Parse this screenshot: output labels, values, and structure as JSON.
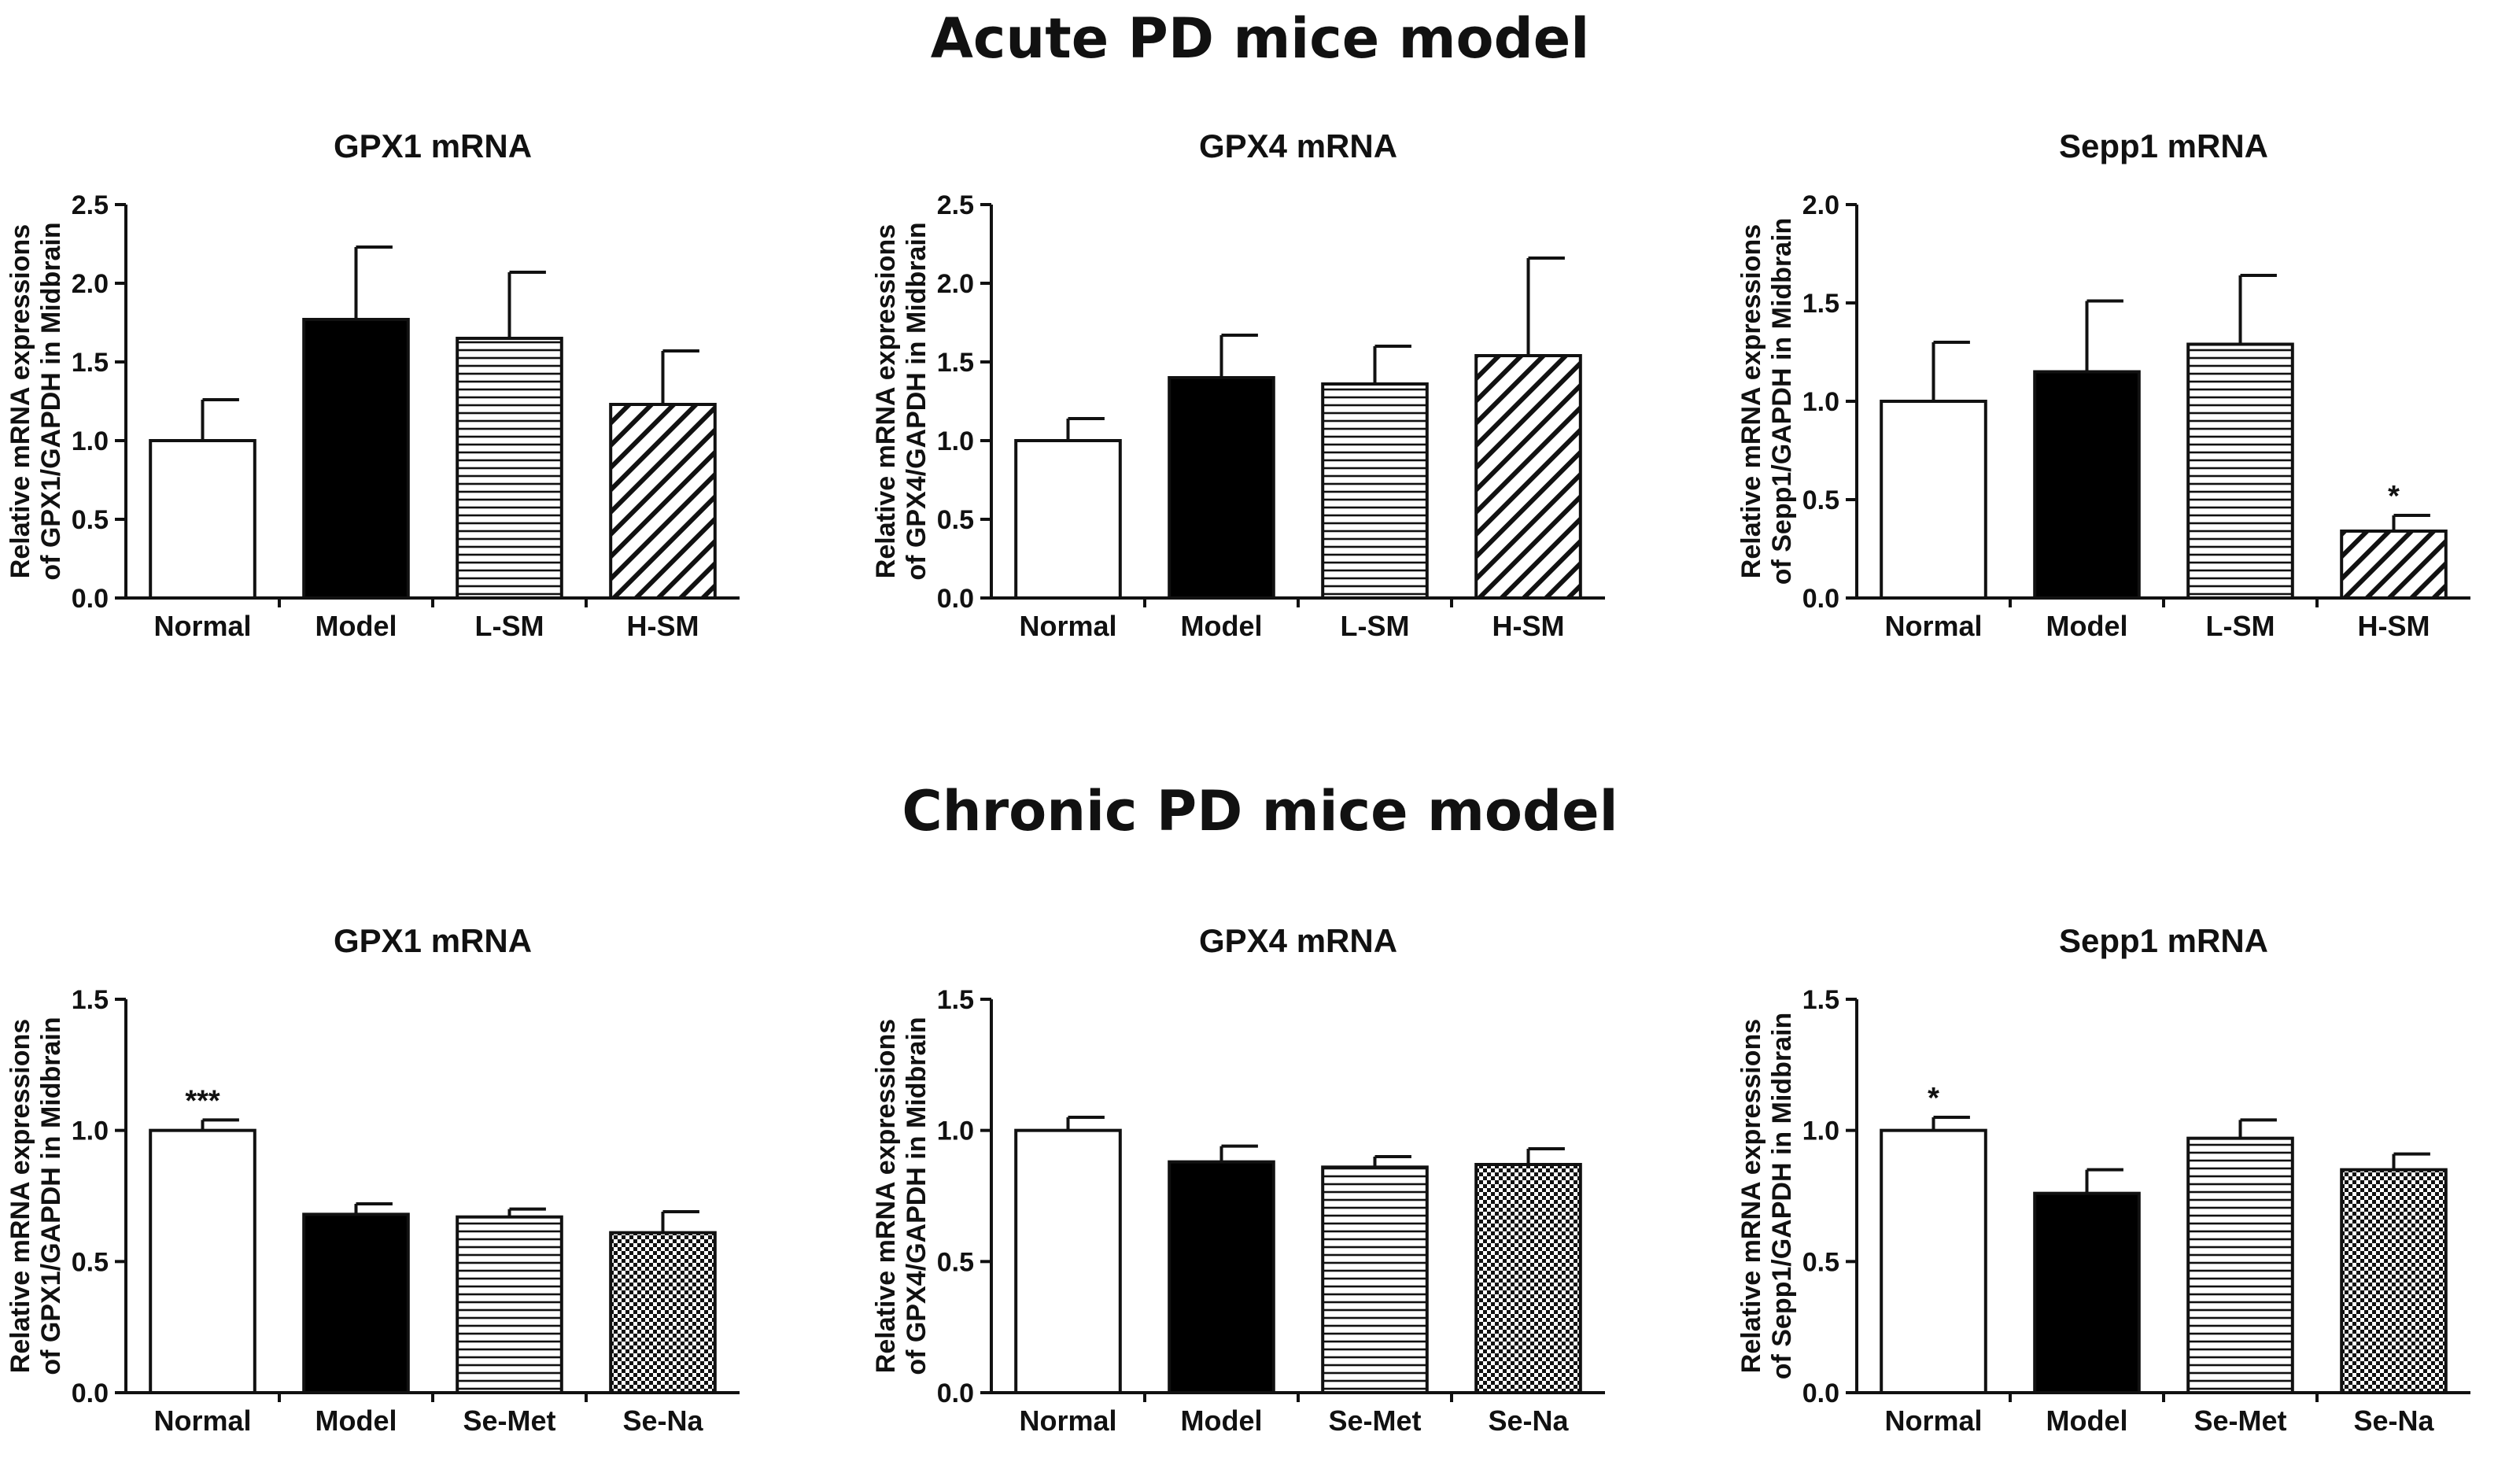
{
  "figure": {
    "acute_title": "Acute PD mice model",
    "chronic_title": "Chronic PD mice model"
  },
  "colors": {
    "ink": "#111111",
    "fill_white": "#ffffff",
    "fill_black": "#000000"
  },
  "chart_data": [
    {
      "id": "acute-gpx1",
      "type": "bar",
      "title": "GPX1 mRNA",
      "ylabel_line1": "Relative mRNA expressions",
      "ylabel_line2": "of GPX1/GAPDH in Midbrain",
      "xlabel": "",
      "categories": [
        "Normal",
        "Model",
        "L-SM",
        "H-SM"
      ],
      "values": [
        1.0,
        1.77,
        1.65,
        1.23
      ],
      "errors": [
        0.26,
        0.46,
        0.42,
        0.34
      ],
      "patterns": [
        "white",
        "black",
        "hlines",
        "diag"
      ],
      "significance": [
        "",
        "",
        "",
        ""
      ],
      "ylim": [
        0,
        2.5
      ],
      "yticks": [
        0.0,
        0.5,
        1.0,
        1.5,
        2.0,
        2.5
      ],
      "ytick_labels": [
        "0.0",
        "0.5",
        "1.0",
        "1.5",
        "2.0",
        "2.5"
      ]
    },
    {
      "id": "acute-gpx4",
      "type": "bar",
      "title": "GPX4 mRNA",
      "ylabel_line1": "Relative mRNA expressions",
      "ylabel_line2": "of GPX4/GAPDH in Midbrain",
      "xlabel": "",
      "categories": [
        "Normal",
        "Model",
        "L-SM",
        "H-SM"
      ],
      "values": [
        1.0,
        1.4,
        1.36,
        1.54
      ],
      "errors": [
        0.14,
        0.27,
        0.24,
        0.62
      ],
      "patterns": [
        "white",
        "black",
        "hlines",
        "diag"
      ],
      "significance": [
        "",
        "",
        "",
        ""
      ],
      "ylim": [
        0,
        2.5
      ],
      "yticks": [
        0.0,
        0.5,
        1.0,
        1.5,
        2.0,
        2.5
      ],
      "ytick_labels": [
        "0.0",
        "0.5",
        "1.0",
        "1.5",
        "2.0",
        "2.5"
      ]
    },
    {
      "id": "acute-sepp1",
      "type": "bar",
      "title": "Sepp1 mRNA",
      "ylabel_line1": "Relative mRNA expressions",
      "ylabel_line2": "of Sepp1/GAPDH in Midbrain",
      "xlabel": "",
      "categories": [
        "Normal",
        "Model",
        "L-SM",
        "H-SM"
      ],
      "values": [
        1.0,
        1.15,
        1.29,
        0.34
      ],
      "errors": [
        0.3,
        0.36,
        0.35,
        0.08
      ],
      "patterns": [
        "white",
        "black",
        "hlines",
        "diag"
      ],
      "significance": [
        "",
        "",
        "",
        "*"
      ],
      "ylim": [
        0,
        2.0
      ],
      "yticks": [
        0.0,
        0.5,
        1.0,
        1.5,
        2.0
      ],
      "ytick_labels": [
        "0.0",
        "0.5",
        "1.0",
        "1.5",
        "2.0"
      ]
    },
    {
      "id": "chronic-gpx1",
      "type": "bar",
      "title": "GPX1 mRNA",
      "ylabel_line1": "Relative mRNA expressions",
      "ylabel_line2": "of GPX1/GAPDH in Midbrain",
      "xlabel": "",
      "categories": [
        "Normal",
        "Model",
        "Se-Met",
        "Se-Na"
      ],
      "values": [
        1.0,
        0.68,
        0.67,
        0.61
      ],
      "errors": [
        0.04,
        0.04,
        0.03,
        0.08
      ],
      "patterns": [
        "white",
        "black",
        "hlines",
        "checker"
      ],
      "significance": [
        "***",
        "",
        "",
        ""
      ],
      "ylim": [
        0,
        1.5
      ],
      "yticks": [
        0.0,
        0.5,
        1.0,
        1.5
      ],
      "ytick_labels": [
        "0.0",
        "0.5",
        "1.0",
        "1.5"
      ]
    },
    {
      "id": "chronic-gpx4",
      "type": "bar",
      "title": "GPX4 mRNA",
      "ylabel_line1": "Relative mRNA expressions",
      "ylabel_line2": "of GPX4/GAPDH in Midbrain",
      "xlabel": "",
      "categories": [
        "Normal",
        "Model",
        "Se-Met",
        "Se-Na"
      ],
      "values": [
        1.0,
        0.88,
        0.86,
        0.87
      ],
      "errors": [
        0.05,
        0.06,
        0.04,
        0.06
      ],
      "patterns": [
        "white",
        "black",
        "hlines",
        "checker"
      ],
      "significance": [
        "",
        "",
        "",
        ""
      ],
      "ylim": [
        0,
        1.5
      ],
      "yticks": [
        0.0,
        0.5,
        1.0,
        1.5
      ],
      "ytick_labels": [
        "0.0",
        "0.5",
        "1.0",
        "1.5"
      ]
    },
    {
      "id": "chronic-sepp1",
      "type": "bar",
      "title": "Sepp1 mRNA",
      "ylabel_line1": "Relative mRNA expressions",
      "ylabel_line2": "of Sepp1/GAPDH in Midbrain",
      "xlabel": "",
      "categories": [
        "Normal",
        "Model",
        "Se-Met",
        "Se-Na"
      ],
      "values": [
        1.0,
        0.76,
        0.97,
        0.85
      ],
      "errors": [
        0.05,
        0.09,
        0.07,
        0.06
      ],
      "patterns": [
        "white",
        "black",
        "hlines",
        "checker"
      ],
      "significance": [
        "*",
        "",
        "",
        ""
      ],
      "ylim": [
        0,
        1.5
      ],
      "yticks": [
        0.0,
        0.5,
        1.0,
        1.5
      ],
      "ytick_labels": [
        "0.0",
        "0.5",
        "1.0",
        "1.5"
      ]
    }
  ]
}
